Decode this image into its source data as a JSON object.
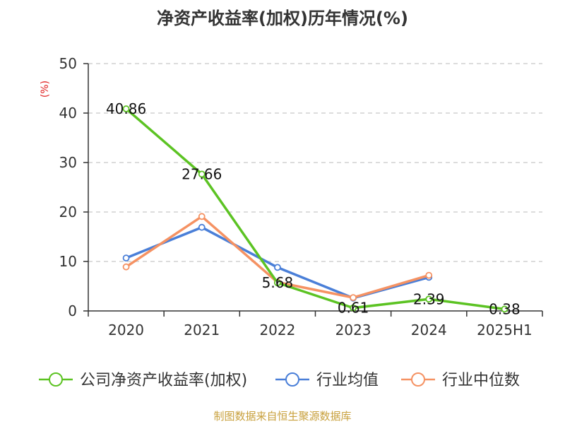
{
  "chart_data": {
    "type": "line",
    "title": "净资产收益率(加权)历年情况(%)",
    "ylabel": "(%)",
    "xlabel": "",
    "categories": [
      "2020",
      "2021",
      "2022",
      "2023",
      "2024",
      "2025H1"
    ],
    "ylim": [
      0,
      50
    ],
    "yticks": [
      0,
      10,
      20,
      30,
      40,
      50
    ],
    "grid": true,
    "legend_position": "bottom",
    "series": [
      {
        "name": "公司净资产收益率(加权)",
        "color": "#5cc323",
        "values": [
          40.86,
          27.66,
          5.68,
          0.61,
          2.39,
          0.38
        ],
        "labels": [
          "40.86",
          "27.66",
          "5.68",
          "0.61",
          "2.39",
          "0.38"
        ]
      },
      {
        "name": "行业均值",
        "color": "#4a7fd8",
        "values": [
          10.7,
          16.9,
          8.8,
          2.6,
          6.8,
          null
        ]
      },
      {
        "name": "行业中位数",
        "color": "#f59263",
        "values": [
          8.9,
          19.1,
          5.8,
          2.7,
          7.2,
          null
        ]
      }
    ]
  },
  "footer": "制图数据来自恒生聚源数据库"
}
